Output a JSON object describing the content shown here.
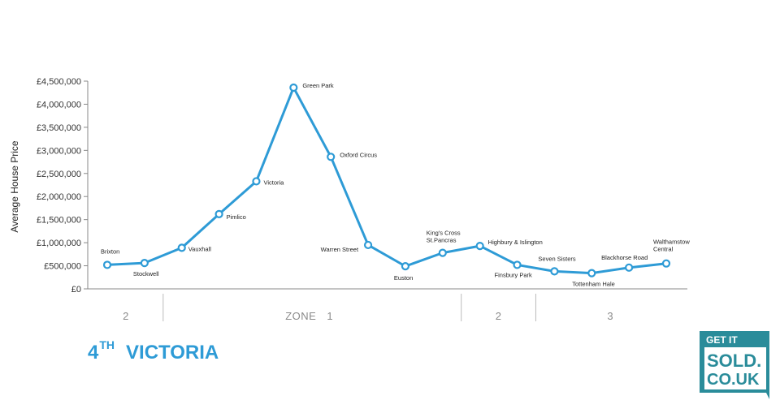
{
  "chart_data": {
    "type": "line",
    "ylabel": "Average House Price",
    "ylim": [
      0,
      4500000
    ],
    "yticks": [
      0,
      500000,
      1000000,
      1500000,
      2000000,
      2500000,
      3000000,
      3500000,
      4000000,
      4500000
    ],
    "ytick_labels": [
      "£0",
      "£500,000",
      "£1,000,000",
      "£1,500,000",
      "£2,000,000",
      "£2,500,000",
      "£3,000,000",
      "£3,500,000",
      "£4,000,000",
      "£4,500,000"
    ],
    "grid": false,
    "color": "#2e9bd6",
    "stations": [
      {
        "name": "Brixton",
        "value": 520000
      },
      {
        "name": "Stockwell",
        "value": 560000
      },
      {
        "name": "Vauxhall",
        "value": 890000
      },
      {
        "name": "Pimlico",
        "value": 1620000
      },
      {
        "name": "Victoria",
        "value": 2330000
      },
      {
        "name": "Green Park",
        "value": 4360000
      },
      {
        "name": "Oxford Circus",
        "value": 2860000
      },
      {
        "name": "Warren Street",
        "value": 950000
      },
      {
        "name": "Euston",
        "value": 490000
      },
      {
        "name": "King's Cross St.Pancras",
        "value": 780000
      },
      {
        "name": "Highbury & Islington",
        "value": 930000
      },
      {
        "name": "Finsbury Park",
        "value": 520000
      },
      {
        "name": "Seven Sisters",
        "value": 380000
      },
      {
        "name": "Tottenham Hale",
        "value": 340000
      },
      {
        "name": "Blackhorse Road",
        "value": 460000
      },
      {
        "name": "Walthamstow Central",
        "value": 550000
      }
    ],
    "zones": [
      {
        "label": "2",
        "stations": [
          0,
          1
        ]
      },
      {
        "label": "ZONE",
        "stations": [
          2,
          9
        ],
        "extra": "1"
      },
      {
        "label": "2",
        "stations": [
          10,
          11
        ]
      },
      {
        "label": "3",
        "stations": [
          12,
          15
        ]
      }
    ]
  },
  "rank": {
    "number": "4",
    "suffix": "TH",
    "line": "VICTORIA"
  },
  "logo": {
    "line1": "GET IT",
    "line2": "SOLD.",
    "line3": "CO.UK",
    "color": "#2a8c9a"
  }
}
